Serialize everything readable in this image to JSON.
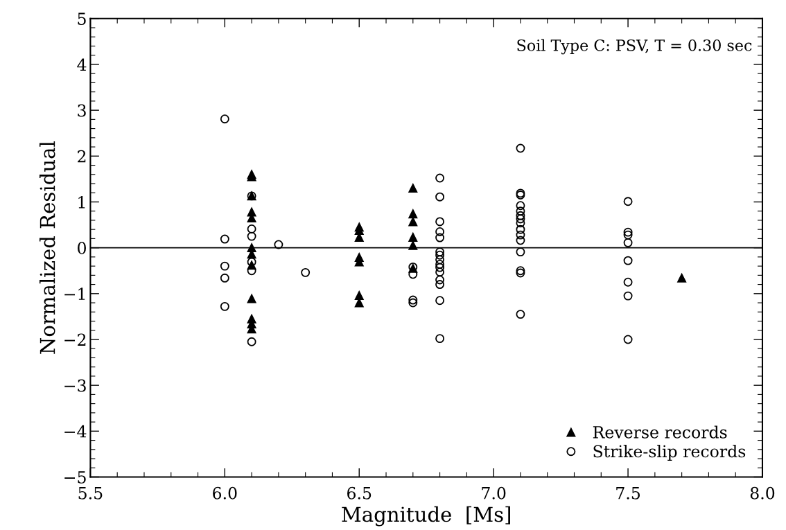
{
  "chart_data": {
    "type": "scatter",
    "xlabel": "Magnitude  [Ms]",
    "ylabel": "Normalized Residual",
    "annotations": [
      "Soil Type C: PSV, T = 0.30 sec"
    ],
    "xlim": [
      5.5,
      8.0
    ],
    "ylim": [
      -5,
      5
    ],
    "xticks": [
      5.5,
      {
        "value": 6,
        "label": "6.0"
      },
      6.5,
      {
        "value": 7,
        "label": "7.0"
      },
      7.5,
      {
        "value": 8,
        "label": "8.0"
      }
    ],
    "yticks": [
      {
        "value": -5,
        "label": "−5"
      },
      {
        "value": -4,
        "label": "−4"
      },
      {
        "value": -3,
        "label": "−3"
      },
      {
        "value": -2,
        "label": "−2"
      },
      {
        "value": -1,
        "label": "−1"
      },
      0,
      1,
      2,
      3,
      4,
      5
    ],
    "grid": false,
    "legend": "bottom right",
    "ref_lines": [
      {
        "axis": "y",
        "value": 0,
        "color": "#000000",
        "line_style": "solid"
      }
    ],
    "series": [
      {
        "name": "Reverse records",
        "color": "#000000",
        "marker": "triangle",
        "x": [
          6.1,
          6.1,
          6.1,
          6.1,
          6.1,
          6.1,
          6.1,
          6.1,
          6.1,
          6.1,
          6.1,
          6.1,
          6.5,
          6.5,
          6.5,
          6.5,
          6.5,
          6.5,
          6.5,
          6.7,
          6.7,
          6.7,
          6.7,
          6.7,
          6.7,
          7.7
        ],
        "values": [
          1.6,
          1.55,
          1.13,
          0.78,
          0.65,
          0.0,
          -0.14,
          -0.38,
          -1.11,
          -1.55,
          -1.66,
          -1.77,
          0.45,
          0.38,
          0.23,
          -0.21,
          -0.31,
          -1.04,
          -1.2,
          1.3,
          0.74,
          0.57,
          0.23,
          0.05,
          -0.45,
          -0.66
        ]
      },
      {
        "name": "Strike-slip records",
        "color": "#000000",
        "marker": "circle",
        "x": [
          6.0,
          6.0,
          6.0,
          6.0,
          6.0,
          6.1,
          6.1,
          6.1,
          6.1,
          6.1,
          6.1,
          6.2,
          6.3,
          6.7,
          6.7,
          6.7,
          6.7,
          6.8,
          6.8,
          6.8,
          6.8,
          6.8,
          6.8,
          6.8,
          6.8,
          6.8,
          6.8,
          6.8,
          6.8,
          6.8,
          6.8,
          6.8,
          7.1,
          7.1,
          7.1,
          7.1,
          7.1,
          7.1,
          7.1,
          7.1,
          7.1,
          7.1,
          7.1,
          7.1,
          7.1,
          7.1,
          7.1,
          7.5,
          7.5,
          7.5,
          7.5,
          7.5,
          7.5,
          7.5,
          7.5
        ],
        "values": [
          2.81,
          0.19,
          -0.4,
          -0.66,
          -1.28,
          1.13,
          0.41,
          0.25,
          -0.31,
          -0.5,
          -2.05,
          0.07,
          -0.54,
          -0.42,
          -0.58,
          -1.14,
          -1.2,
          1.52,
          1.11,
          0.57,
          0.35,
          0.22,
          -0.09,
          -0.16,
          -0.26,
          -0.36,
          -0.43,
          -0.53,
          -0.7,
          -0.8,
          -1.15,
          -1.98,
          2.17,
          1.19,
          1.15,
          0.92,
          0.8,
          0.7,
          0.63,
          0.54,
          0.4,
          0.28,
          0.16,
          -0.09,
          -0.5,
          -0.55,
          -1.45,
          1.01,
          0.34,
          0.28,
          0.11,
          -0.28,
          -0.75,
          -1.05,
          -2.0
        ]
      }
    ]
  }
}
